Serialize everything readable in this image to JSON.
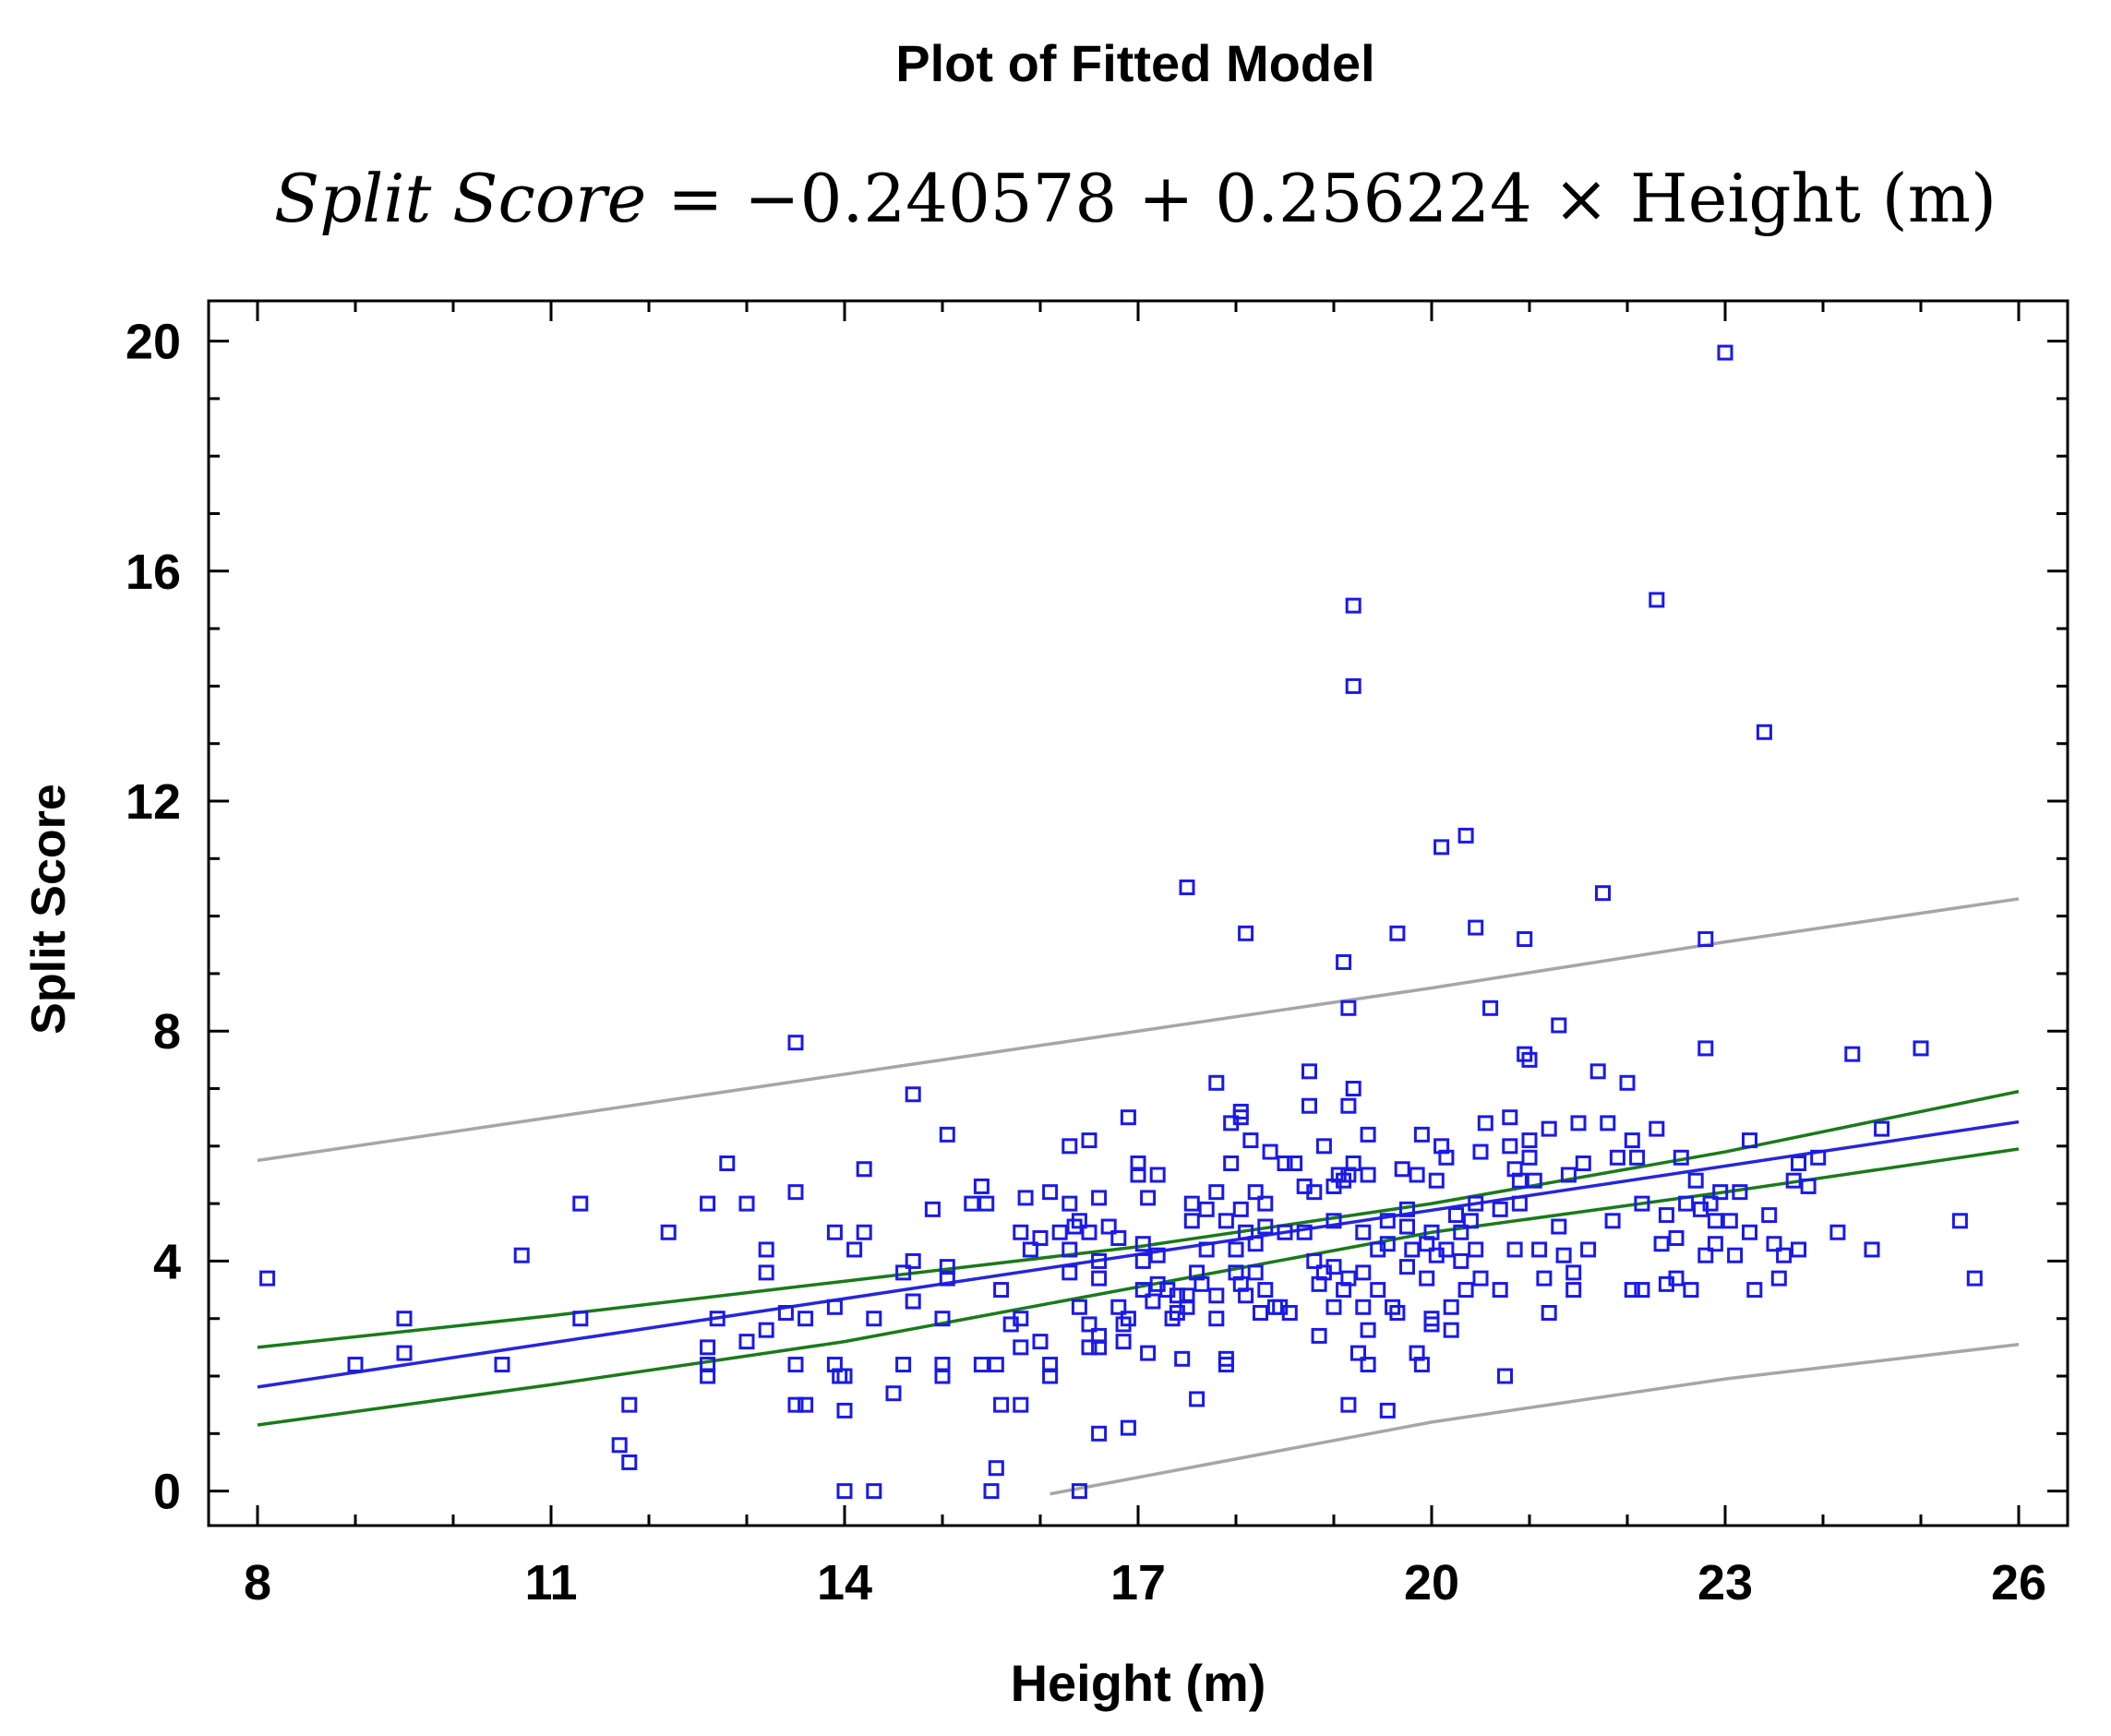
{
  "chart_data": {
    "type": "scatter",
    "title": "Plot of Fitted Model",
    "equation": {
      "lhs": "Split  Score",
      "rhs": " = −0.240578 + 0.256224 × Height  (m)"
    },
    "xlabel": "Height (m)",
    "ylabel": "Split Score",
    "xlim": [
      7.5,
      26.5
    ],
    "ylim": [
      -0.6,
      20.7
    ],
    "xticks": [
      8,
      11,
      14,
      17,
      20,
      23,
      26
    ],
    "yticks": [
      0,
      4,
      8,
      12,
      16,
      20
    ],
    "fit": {
      "intercept": -0.240578,
      "slope": 0.256224,
      "x_range": [
        8,
        26
      ]
    },
    "confidence_band": {
      "lower": [
        [
          8,
          1.15
        ],
        [
          11,
          1.85
        ],
        [
          14,
          2.6
        ],
        [
          17,
          3.55
        ],
        [
          20,
          4.5
        ],
        [
          23,
          5.2
        ],
        [
          26,
          5.95
        ]
      ],
      "upper": [
        [
          8,
          2.5
        ],
        [
          11,
          3.05
        ],
        [
          14,
          3.65
        ],
        [
          17,
          4.25
        ],
        [
          20,
          5.0
        ],
        [
          23,
          5.9
        ],
        [
          26,
          6.95
        ]
      ]
    },
    "prediction_band": {
      "lower": [
        [
          16.1,
          -0.05
        ],
        [
          20,
          1.2
        ],
        [
          23,
          1.95
        ],
        [
          26,
          2.55
        ]
      ],
      "upper": [
        [
          8,
          5.75
        ],
        [
          11,
          6.5
        ],
        [
          14,
          7.25
        ],
        [
          17,
          8.0
        ],
        [
          20,
          8.75
        ],
        [
          23,
          9.55
        ],
        [
          26,
          10.3
        ]
      ]
    },
    "colors": {
      "points": "#1a1ae6",
      "fit_line": "#2626d9",
      "confidence": "#1a7a1a",
      "prediction": "#a6a6a6",
      "axes": "#000000"
    },
    "points": [
      [
        8.1,
        3.7
      ],
      [
        9,
        2.2
      ],
      [
        9.5,
        3
      ],
      [
        9.5,
        2.4
      ],
      [
        10.5,
        2.2
      ],
      [
        10.7,
        4.1
      ],
      [
        11.3,
        5
      ],
      [
        11.3,
        3
      ],
      [
        11.7,
        0.8
      ],
      [
        11.8,
        0.5
      ],
      [
        11.8,
        1.5
      ],
      [
        12.2,
        4.5
      ],
      [
        12.6,
        5
      ],
      [
        12.6,
        2.5
      ],
      [
        12.6,
        2.2
      ],
      [
        12.6,
        2
      ],
      [
        12.7,
        3
      ],
      [
        12.8,
        5.7
      ],
      [
        13,
        5
      ],
      [
        13,
        2.6
      ],
      [
        13.2,
        2.8
      ],
      [
        13.2,
        3.8
      ],
      [
        13.2,
        4.2
      ],
      [
        13.4,
        3.1
      ],
      [
        13.5,
        7.8
      ],
      [
        13.5,
        5.2
      ],
      [
        13.5,
        1.5
      ],
      [
        13.6,
        1.5
      ],
      [
        13.6,
        3
      ],
      [
        13.5,
        2.2
      ],
      [
        13.9,
        4.5
      ],
      [
        13.9,
        3.2
      ],
      [
        13.9,
        2.2
      ],
      [
        13.95,
        2
      ],
      [
        14,
        2
      ],
      [
        14,
        1.4
      ],
      [
        14,
        0
      ],
      [
        14.1,
        4.2
      ],
      [
        14.2,
        4.5
      ],
      [
        14.2,
        5.6
      ],
      [
        14.3,
        3
      ],
      [
        14.3,
        0
      ],
      [
        14.5,
        1.7
      ],
      [
        14.6,
        3.8
      ],
      [
        14.6,
        2.2
      ],
      [
        14.7,
        6.9
      ],
      [
        14.7,
        4
      ],
      [
        14.7,
        3.3
      ],
      [
        14.9,
        4.9
      ],
      [
        15,
        3
      ],
      [
        15,
        2.2
      ],
      [
        15,
        2
      ],
      [
        15.05,
        6.2
      ],
      [
        15.05,
        3.9
      ],
      [
        15.05,
        3.7
      ],
      [
        15.3,
        5
      ],
      [
        15.4,
        5.3
      ],
      [
        15.45,
        5
      ],
      [
        15.4,
        2.2
      ],
      [
        15.5,
        0
      ],
      [
        15.55,
        0.4
      ],
      [
        15.55,
        2.2
      ],
      [
        15.6,
        1.5
      ],
      [
        15.6,
        3.5
      ],
      [
        15.7,
        2.9
      ],
      [
        15.8,
        3
      ],
      [
        15.8,
        1.5
      ],
      [
        15.8,
        2.5
      ],
      [
        15.8,
        4.5
      ],
      [
        15.85,
        5.1
      ],
      [
        15.9,
        4.2
      ],
      [
        16,
        4.4
      ],
      [
        16,
        2.6
      ],
      [
        16.1,
        2.2
      ],
      [
        16.1,
        5.2
      ],
      [
        16.1,
        2
      ],
      [
        16.2,
        4.5
      ],
      [
        16.3,
        6
      ],
      [
        16.3,
        5
      ],
      [
        16.3,
        4.2
      ],
      [
        16.3,
        3.8
      ],
      [
        16.35,
        4.6
      ],
      [
        16.4,
        0
      ],
      [
        16.4,
        4.7
      ],
      [
        16.4,
        3.2
      ],
      [
        16.5,
        6.1
      ],
      [
        16.5,
        4.5
      ],
      [
        16.5,
        2.5
      ],
      [
        16.5,
        2.9
      ],
      [
        16.6,
        5.1
      ],
      [
        16.6,
        4
      ],
      [
        16.6,
        3.7
      ],
      [
        16.6,
        2.5
      ],
      [
        16.6,
        2.7
      ],
      [
        16.6,
        1
      ],
      [
        16.7,
        4.6
      ],
      [
        16.8,
        3.2
      ],
      [
        16.8,
        4.4
      ],
      [
        16.85,
        2.9
      ],
      [
        16.85,
        2.6
      ],
      [
        16.9,
        3
      ],
      [
        16.9,
        6.5
      ],
      [
        16.9,
        1.1
      ],
      [
        17,
        5.7
      ],
      [
        17,
        5.5
      ],
      [
        17.05,
        4.3
      ],
      [
        17.05,
        4
      ],
      [
        17.05,
        3.5
      ],
      [
        17.1,
        5.1
      ],
      [
        17.1,
        2.4
      ],
      [
        17.15,
        3.3
      ],
      [
        17.2,
        4.1
      ],
      [
        17.2,
        3.6
      ],
      [
        17.2,
        5.5
      ],
      [
        17.3,
        3.5
      ],
      [
        17.35,
        3
      ],
      [
        17.4,
        3.4
      ],
      [
        17.4,
        3.1
      ],
      [
        17.45,
        2.3
      ],
      [
        17.5,
        3.4
      ],
      [
        17.5,
        3.2
      ],
      [
        17.5,
        10.5
      ],
      [
        17.55,
        5
      ],
      [
        17.55,
        4.7
      ],
      [
        17.6,
        3.8
      ],
      [
        17.6,
        1.6
      ],
      [
        17.65,
        3.6
      ],
      [
        17.7,
        4.9
      ],
      [
        17.7,
        4.2
      ],
      [
        17.8,
        7.1
      ],
      [
        17.8,
        5.2
      ],
      [
        17.8,
        3
      ],
      [
        17.8,
        3.4
      ],
      [
        17.9,
        4.7
      ],
      [
        17.9,
        2.3
      ],
      [
        17.9,
        2.2
      ],
      [
        17.95,
        5.7
      ],
      [
        17.95,
        6.4
      ],
      [
        18,
        4.2
      ],
      [
        18,
        3.8
      ],
      [
        18.05,
        6.5
      ],
      [
        18.05,
        6.6
      ],
      [
        18.05,
        4.9
      ],
      [
        18.05,
        3.6
      ],
      [
        18.1,
        4.5
      ],
      [
        18.1,
        3.4
      ],
      [
        18.1,
        9.7
      ],
      [
        18.15,
        6.1
      ],
      [
        18.2,
        5.2
      ],
      [
        18.2,
        4.3
      ],
      [
        18.2,
        3.8
      ],
      [
        18.25,
        3.1
      ],
      [
        18.3,
        3.5
      ],
      [
        18.3,
        5
      ],
      [
        18.3,
        4.6
      ],
      [
        18.35,
        5.9
      ],
      [
        18.4,
        3.2
      ],
      [
        18.45,
        3.2
      ],
      [
        18.5,
        5.7
      ],
      [
        18.5,
        4.5
      ],
      [
        18.55,
        3.1
      ],
      [
        18.6,
        5.7
      ],
      [
        18.7,
        5.3
      ],
      [
        18.7,
        4.5
      ],
      [
        18.75,
        7.3
      ],
      [
        18.75,
        6.7
      ],
      [
        18.8,
        5.2
      ],
      [
        18.8,
        4
      ],
      [
        18.85,
        3.6
      ],
      [
        18.85,
        2.7
      ],
      [
        18.9,
        3.8
      ],
      [
        18.9,
        6
      ],
      [
        19,
        5.3
      ],
      [
        19,
        4.7
      ],
      [
        19,
        3.9
      ],
      [
        19,
        3.2
      ],
      [
        19.05,
        5.5
      ],
      [
        19.1,
        5.4
      ],
      [
        19.1,
        3.5
      ],
      [
        19.1,
        9.2
      ],
      [
        19.15,
        8.4
      ],
      [
        19.15,
        6.7
      ],
      [
        19.15,
        5.5
      ],
      [
        19.15,
        3.7
      ],
      [
        19.15,
        1.5
      ],
      [
        19.2,
        15.4
      ],
      [
        19.2,
        14
      ],
      [
        19.2,
        7
      ],
      [
        19.2,
        5.7
      ],
      [
        19.25,
        2.4
      ],
      [
        19.3,
        4.5
      ],
      [
        19.3,
        3.8
      ],
      [
        19.3,
        3.2
      ],
      [
        19.35,
        6.2
      ],
      [
        19.35,
        5.5
      ],
      [
        19.35,
        2.8
      ],
      [
        19.35,
        2.2
      ],
      [
        19.45,
        3.5
      ],
      [
        19.45,
        4.2
      ],
      [
        19.55,
        4.7
      ],
      [
        19.55,
        4.3
      ],
      [
        19.55,
        1.4
      ],
      [
        19.6,
        3.2
      ],
      [
        19.65,
        9.7
      ],
      [
        19.65,
        3.1
      ],
      [
        19.7,
        5.6
      ],
      [
        19.75,
        4.9
      ],
      [
        19.75,
        4.6
      ],
      [
        19.75,
        3.9
      ],
      [
        19.8,
        4.2
      ],
      [
        19.85,
        5.5
      ],
      [
        19.85,
        2.4
      ],
      [
        19.9,
        6.2
      ],
      [
        19.9,
        2.2
      ],
      [
        19.95,
        4.3
      ],
      [
        19.95,
        3.7
      ],
      [
        20,
        4.5
      ],
      [
        20,
        3
      ],
      [
        20,
        2.9
      ],
      [
        20.05,
        5.4
      ],
      [
        20.05,
        4.1
      ],
      [
        20.1,
        6
      ],
      [
        20.1,
        11.2
      ],
      [
        20.15,
        5.8
      ],
      [
        20.15,
        4.2
      ],
      [
        20.2,
        3.2
      ],
      [
        20.2,
        2.8
      ],
      [
        20.25,
        4.8
      ],
      [
        20.3,
        4.5
      ],
      [
        20.3,
        4
      ],
      [
        20.35,
        11.4
      ],
      [
        20.35,
        3.5
      ],
      [
        20.4,
        4.7
      ],
      [
        20.45,
        9.8
      ],
      [
        20.45,
        5
      ],
      [
        20.45,
        4.2
      ],
      [
        20.5,
        3.7
      ],
      [
        20.5,
        5.9
      ],
      [
        20.55,
        6.4
      ],
      [
        20.6,
        8.4
      ],
      [
        20.7,
        4.9
      ],
      [
        20.7,
        3.5
      ],
      [
        20.75,
        2
      ],
      [
        20.8,
        6.5
      ],
      [
        20.8,
        6
      ],
      [
        20.85,
        4.2
      ],
      [
        20.85,
        5.6
      ],
      [
        20.9,
        5.4
      ],
      [
        20.9,
        5
      ],
      [
        20.95,
        9.6
      ],
      [
        20.95,
        7.6
      ],
      [
        21,
        6.1
      ],
      [
        21,
        5.8
      ],
      [
        21,
        7.5
      ],
      [
        21.05,
        5.4
      ],
      [
        21.1,
        4.2
      ],
      [
        21.15,
        3.7
      ],
      [
        21.2,
        3.1
      ],
      [
        21.2,
        6.3
      ],
      [
        21.3,
        8.1
      ],
      [
        21.3,
        4.6
      ],
      [
        21.35,
        4.1
      ],
      [
        21.4,
        5.5
      ],
      [
        21.45,
        3.5
      ],
      [
        21.45,
        3.8
      ],
      [
        21.5,
        6.4
      ],
      [
        21.55,
        5.7
      ],
      [
        21.6,
        4.2
      ],
      [
        21.7,
        7.3
      ],
      [
        21.75,
        10.4
      ],
      [
        21.8,
        6.4
      ],
      [
        21.85,
        4.7
      ],
      [
        21.9,
        5.8
      ],
      [
        22,
        7.1
      ],
      [
        22.05,
        6.1
      ],
      [
        22.05,
        3.5
      ],
      [
        22.1,
        5.8
      ],
      [
        22.15,
        5
      ],
      [
        22.15,
        3.5
      ],
      [
        22.3,
        6.3
      ],
      [
        22.3,
        15.5
      ],
      [
        22.35,
        4.3
      ],
      [
        22.4,
        3.6
      ],
      [
        22.4,
        4.8
      ],
      [
        22.5,
        4.4
      ],
      [
        22.5,
        3.7
      ],
      [
        22.55,
        5.8
      ],
      [
        22.6,
        5
      ],
      [
        22.65,
        3.5
      ],
      [
        22.7,
        5.4
      ],
      [
        22.75,
        4.9
      ],
      [
        22.8,
        9.6
      ],
      [
        22.8,
        7.7
      ],
      [
        22.8,
        4.1
      ],
      [
        22.85,
        5
      ],
      [
        22.9,
        4.7
      ],
      [
        22.9,
        4.3
      ],
      [
        22.95,
        5.2
      ],
      [
        23,
        19.8
      ],
      [
        23.05,
        4.7
      ],
      [
        23.1,
        4.1
      ],
      [
        23.15,
        5.2
      ],
      [
        23.25,
        6.1
      ],
      [
        23.25,
        4.5
      ],
      [
        23.3,
        3.5
      ],
      [
        23.4,
        13.2
      ],
      [
        23.45,
        4.8
      ],
      [
        23.5,
        4.3
      ],
      [
        23.55,
        3.7
      ],
      [
        23.6,
        4.1
      ],
      [
        23.7,
        5.4
      ],
      [
        23.75,
        4.2
      ],
      [
        23.75,
        5.7
      ],
      [
        23.85,
        5.3
      ],
      [
        23.95,
        5.8
      ],
      [
        24.15,
        4.5
      ],
      [
        24.3,
        7.6
      ],
      [
        24.5,
        4.2
      ],
      [
        24.6,
        6.3
      ],
      [
        25,
        7.7
      ],
      [
        25.4,
        4.7
      ],
      [
        25.55,
        3.7
      ]
    ]
  }
}
